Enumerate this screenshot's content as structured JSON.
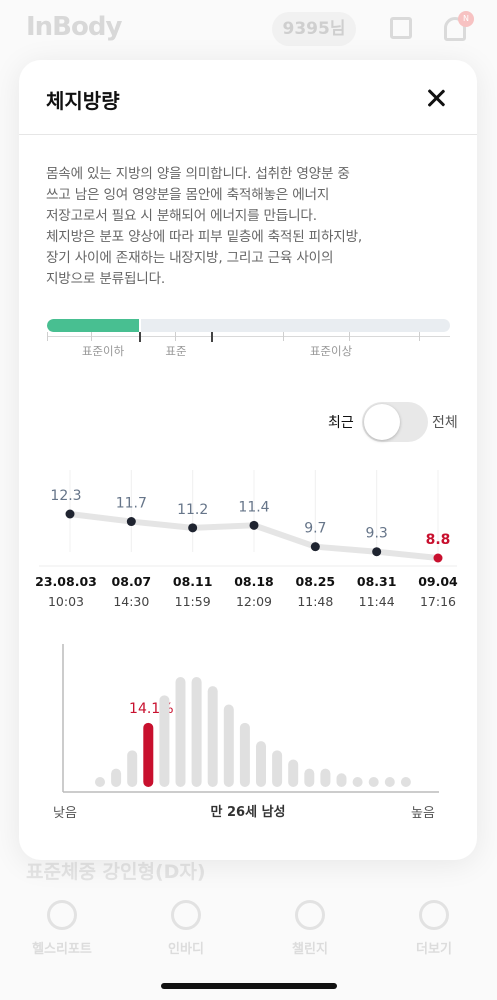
{
  "background": {
    "logo": "InBody",
    "user_label": "9395님",
    "notification_count": "N",
    "section_title": "표준체중 강인형(D자)",
    "nav": [
      {
        "label": "헬스리포트",
        "icon": "person-icon"
      },
      {
        "label": "인바디",
        "icon": "graph-icon"
      },
      {
        "label": "챌린지",
        "icon": "flame-icon"
      },
      {
        "label": "더보기",
        "icon": "more-icon"
      }
    ]
  },
  "modal": {
    "title": "체지방량",
    "close_icon": "close-icon",
    "description": [
      "몸속에 있는 지방의 양을 의미합니다. 섭취한 영양분 중",
      "쓰고 남은 잉여 영양분을 몸안에 축적해놓은 에너지",
      "저장고로서 필요 시 분해되어 에너지를 만듭니다.",
      "체지방은 분포 양상에 따라 피부 밑층에 축적된 피하지방,",
      "장기 사이에 존재하는 내장지방, 그리고 근육 사이의",
      "지방으로 분류됩니다."
    ],
    "range": {
      "fill_fraction": 0.23,
      "color": "#48bf91",
      "labels": [
        "표준이하",
        "표준",
        "표준이상"
      ]
    },
    "toggle": {
      "left_label": "최근",
      "right_label": "전체",
      "selected": "최근"
    }
  },
  "chart_data": [
    {
      "type": "line",
      "x": [
        "23.08.03",
        "08.07",
        "08.11",
        "08.18",
        "08.25",
        "08.31",
        "09.04"
      ],
      "times": [
        "10:03",
        "14:30",
        "11:59",
        "12:09",
        "11:48",
        "11:44",
        "17:16"
      ],
      "values": [
        12.3,
        11.7,
        11.2,
        11.4,
        9.7,
        9.3,
        8.8
      ],
      "highlight_index": 6,
      "colors": {
        "normal": "#1f2430",
        "highlight": "#c8102e",
        "line": "#e5e5e5"
      }
    },
    {
      "type": "bar",
      "values": [
        1,
        2,
        4,
        7,
        10,
        12,
        12,
        11,
        9,
        7,
        5,
        4,
        3,
        2,
        2,
        1.5,
        1,
        1,
        0.8,
        0.8
      ],
      "highlight_index": 3,
      "highlight_label": "14.1%",
      "xlabel": "만 26세 남성",
      "low_label": "낮음",
      "high_label": "높음",
      "colors": {
        "normal": "#e0e0e0",
        "highlight": "#c8102e"
      }
    }
  ]
}
